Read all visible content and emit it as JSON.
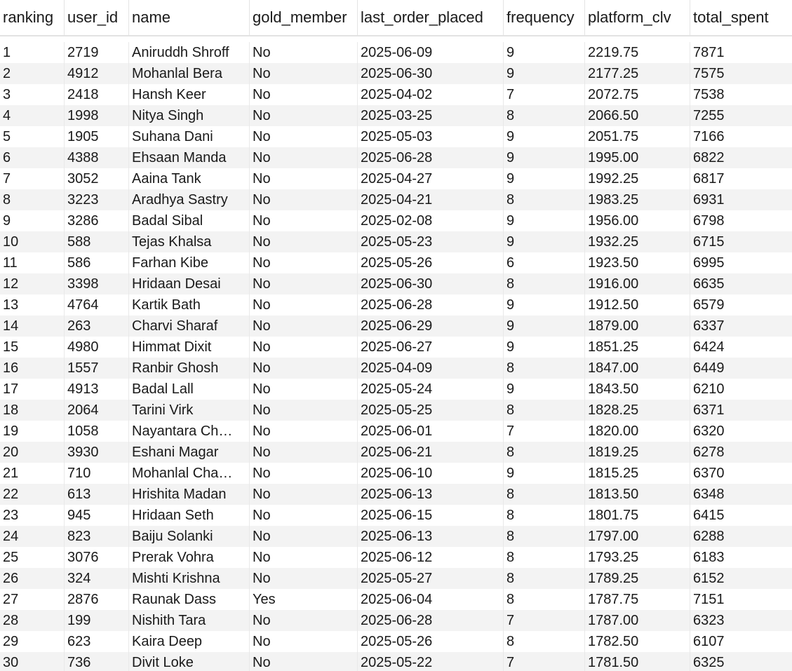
{
  "table": {
    "columns": [
      "ranking",
      "user_id",
      "name",
      "gold_member",
      "last_order_placed",
      "frequency",
      "platform_clv",
      "total_spent"
    ],
    "rows": [
      [
        "1",
        "2719",
        "Aniruddh Shroff",
        "No",
        "2025-06-09",
        "9",
        "2219.75",
        "7871"
      ],
      [
        "2",
        "4912",
        "Mohanlal Bera",
        "No",
        "2025-06-30",
        "9",
        "2177.25",
        "7575"
      ],
      [
        "3",
        "2418",
        "Hansh Keer",
        "No",
        "2025-04-02",
        "7",
        "2072.75",
        "7538"
      ],
      [
        "4",
        "1998",
        "Nitya Singh",
        "No",
        "2025-03-25",
        "8",
        "2066.50",
        "7255"
      ],
      [
        "5",
        "1905",
        "Suhana Dani",
        "No",
        "2025-05-03",
        "9",
        "2051.75",
        "7166"
      ],
      [
        "6",
        "4388",
        "Ehsaan Manda",
        "No",
        "2025-06-28",
        "9",
        "1995.00",
        "6822"
      ],
      [
        "7",
        "3052",
        "Aaina Tank",
        "No",
        "2025-04-27",
        "9",
        "1992.25",
        "6817"
      ],
      [
        "8",
        "3223",
        "Aradhya Sastry",
        "No",
        "2025-04-21",
        "8",
        "1983.25",
        "6931"
      ],
      [
        "9",
        "3286",
        "Badal Sibal",
        "No",
        "2025-02-08",
        "9",
        "1956.00",
        "6798"
      ],
      [
        "10",
        "588",
        "Tejas Khalsa",
        "No",
        "2025-05-23",
        "9",
        "1932.25",
        "6715"
      ],
      [
        "11",
        "586",
        "Farhan Kibe",
        "No",
        "2025-05-26",
        "6",
        "1923.50",
        "6995"
      ],
      [
        "12",
        "3398",
        "Hridaan Desai",
        "No",
        "2025-06-30",
        "8",
        "1916.00",
        "6635"
      ],
      [
        "13",
        "4764",
        "Kartik Bath",
        "No",
        "2025-06-28",
        "9",
        "1912.50",
        "6579"
      ],
      [
        "14",
        "263",
        "Charvi Sharaf",
        "No",
        "2025-06-29",
        "9",
        "1879.00",
        "6337"
      ],
      [
        "15",
        "4980",
        "Himmat Dixit",
        "No",
        "2025-06-27",
        "9",
        "1851.25",
        "6424"
      ],
      [
        "16",
        "1557",
        "Ranbir Ghosh",
        "No",
        "2025-04-09",
        "8",
        "1847.00",
        "6449"
      ],
      [
        "17",
        "4913",
        "Badal Lall",
        "No",
        "2025-05-24",
        "9",
        "1843.50",
        "6210"
      ],
      [
        "18",
        "2064",
        "Tarini Virk",
        "No",
        "2025-05-25",
        "8",
        "1828.25",
        "6371"
      ],
      [
        "19",
        "1058",
        "Nayantara Ch…",
        "No",
        "2025-06-01",
        "7",
        "1820.00",
        "6320"
      ],
      [
        "20",
        "3930",
        "Eshani Magar",
        "No",
        "2025-06-21",
        "8",
        "1819.25",
        "6278"
      ],
      [
        "21",
        "710",
        "Mohanlal Cha…",
        "No",
        "2025-06-10",
        "9",
        "1815.25",
        "6370"
      ],
      [
        "22",
        "613",
        "Hrishita Madan",
        "No",
        "2025-06-13",
        "8",
        "1813.50",
        "6348"
      ],
      [
        "23",
        "945",
        "Hridaan Seth",
        "No",
        "2025-06-15",
        "8",
        "1801.75",
        "6415"
      ],
      [
        "24",
        "823",
        "Baiju Solanki",
        "No",
        "2025-06-13",
        "8",
        "1797.00",
        "6288"
      ],
      [
        "25",
        "3076",
        "Prerak Vohra",
        "No",
        "2025-06-12",
        "8",
        "1793.25",
        "6183"
      ],
      [
        "26",
        "324",
        "Mishti Krishna",
        "No",
        "2025-05-27",
        "8",
        "1789.25",
        "6152"
      ],
      [
        "27",
        "2876",
        "Raunak Dass",
        "Yes",
        "2025-06-04",
        "8",
        "1787.75",
        "7151"
      ],
      [
        "28",
        "199",
        "Nishith Tara",
        "No",
        "2025-06-28",
        "7",
        "1787.00",
        "6323"
      ],
      [
        "29",
        "623",
        "Kaira Deep",
        "No",
        "2025-05-26",
        "8",
        "1782.50",
        "6107"
      ],
      [
        "30",
        "736",
        "Divit Loke",
        "No",
        "2025-05-22",
        "7",
        "1781.50",
        "6325"
      ]
    ]
  }
}
